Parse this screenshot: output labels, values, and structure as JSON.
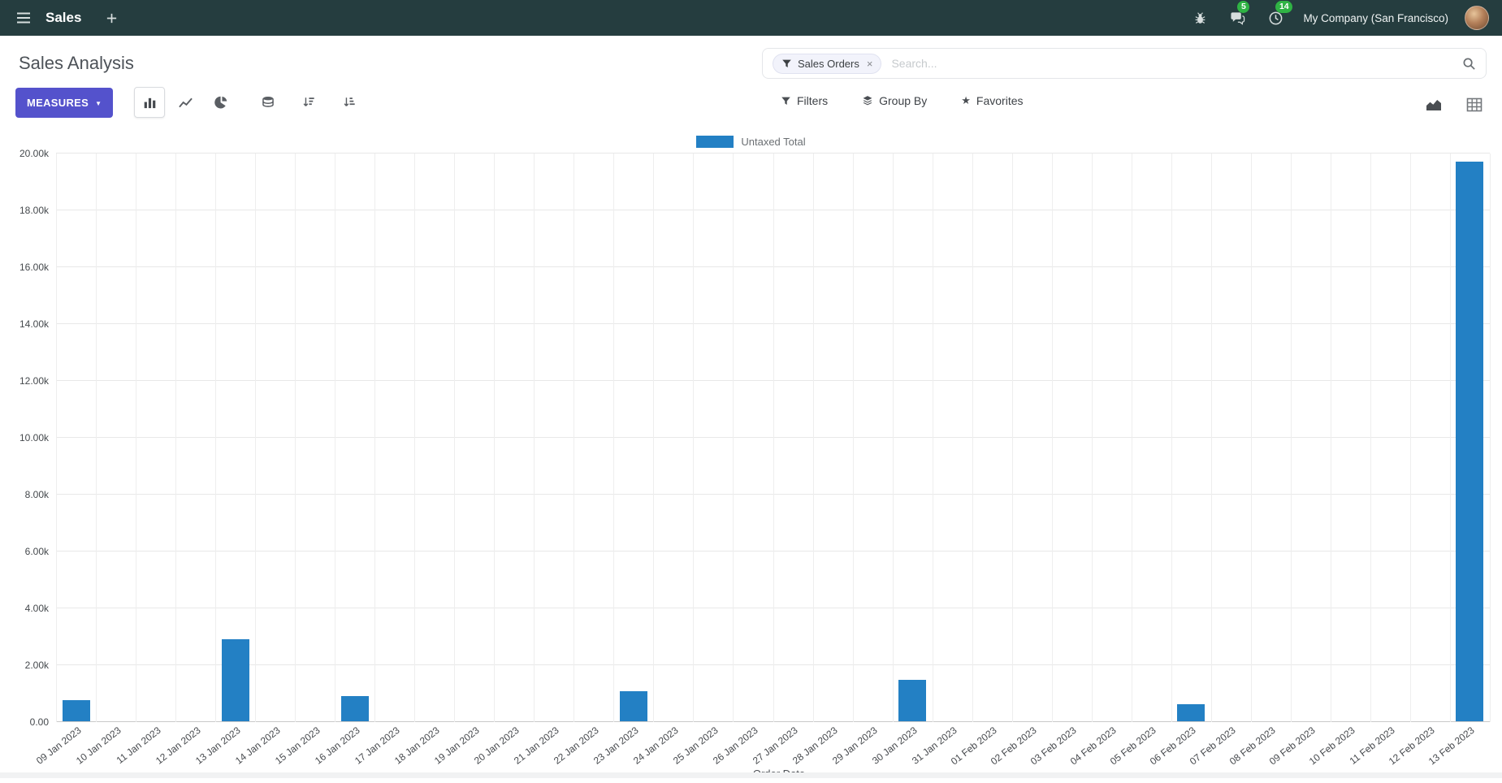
{
  "colors": {
    "topbar_bg": "#253d3f",
    "primary_button": "#5452cc",
    "badge_green": "#2fb344",
    "bar_series": "#2380c4",
    "grid_line": "#e8e8e8"
  },
  "topbar": {
    "app_name": "Sales",
    "messages_badge": "5",
    "activities_badge": "14",
    "company": "My Company (San Francisco)"
  },
  "control_panel": {
    "title": "Sales Analysis",
    "search": {
      "facet_label": "Sales Orders",
      "facet_remove": "×",
      "placeholder": "Search..."
    },
    "measures_label": "MEASURES",
    "caret": "▼",
    "filters_label": "Filters",
    "group_by_label": "Group By",
    "favorites_label": "Favorites",
    "favorites_star": "★"
  },
  "chart_data": {
    "type": "bar",
    "title": "",
    "xlabel": "Order Date",
    "ylabel": "",
    "ylim": [
      0,
      20000
    ],
    "ytick_step": 2000,
    "ytick_labels": [
      "0.00",
      "2.00k",
      "4.00k",
      "6.00k",
      "8.00k",
      "10.00k",
      "12.00k",
      "14.00k",
      "16.00k",
      "18.00k",
      "20.00k"
    ],
    "legend_position": "top",
    "grid": true,
    "categories": [
      "09 Jan 2023",
      "10 Jan 2023",
      "11 Jan 2023",
      "12 Jan 2023",
      "13 Jan 2023",
      "14 Jan 2023",
      "15 Jan 2023",
      "16 Jan 2023",
      "17 Jan 2023",
      "18 Jan 2023",
      "19 Jan 2023",
      "20 Jan 2023",
      "21 Jan 2023",
      "22 Jan 2023",
      "23 Jan 2023",
      "24 Jan 2023",
      "25 Jan 2023",
      "26 Jan 2023",
      "27 Jan 2023",
      "28 Jan 2023",
      "29 Jan 2023",
      "30 Jan 2023",
      "31 Jan 2023",
      "01 Feb 2023",
      "02 Feb 2023",
      "03 Feb 2023",
      "04 Feb 2023",
      "05 Feb 2023",
      "06 Feb 2023",
      "07 Feb 2023",
      "08 Feb 2023",
      "09 Feb 2023",
      "10 Feb 2023",
      "11 Feb 2023",
      "12 Feb 2023",
      "13 Feb 2023"
    ],
    "series": [
      {
        "name": "Untaxed Total",
        "color": "#2380c4",
        "values": [
          750,
          0,
          0,
          0,
          2900,
          0,
          0,
          900,
          0,
          0,
          0,
          0,
          0,
          0,
          1050,
          0,
          0,
          0,
          0,
          0,
          0,
          1450,
          0,
          0,
          0,
          0,
          0,
          0,
          600,
          0,
          0,
          0,
          0,
          0,
          0,
          19700
        ]
      }
    ]
  },
  "icons": {
    "hamburger-menu-icon": "three horizontal lines",
    "plus-icon": "+",
    "bug-icon": "debug bug",
    "messages-icon": "speech bubbles",
    "activities-icon": "clock",
    "avatar": "user photo",
    "filter-funnel-icon": "funnel",
    "search-icon": "magnifier",
    "bar-chart-icon": "vertical bars",
    "line-chart-icon": "polyline",
    "pie-chart-icon": "pie",
    "stacked-icon": "database stack",
    "sort-desc-icon": "descending bars with down arrow",
    "sort-asc-icon": "ascending bars with down arrow",
    "group-by-icon": "stacked layers",
    "favorites-icon": "★",
    "graph-view-icon": "area chart",
    "pivot-view-icon": "grid table"
  }
}
